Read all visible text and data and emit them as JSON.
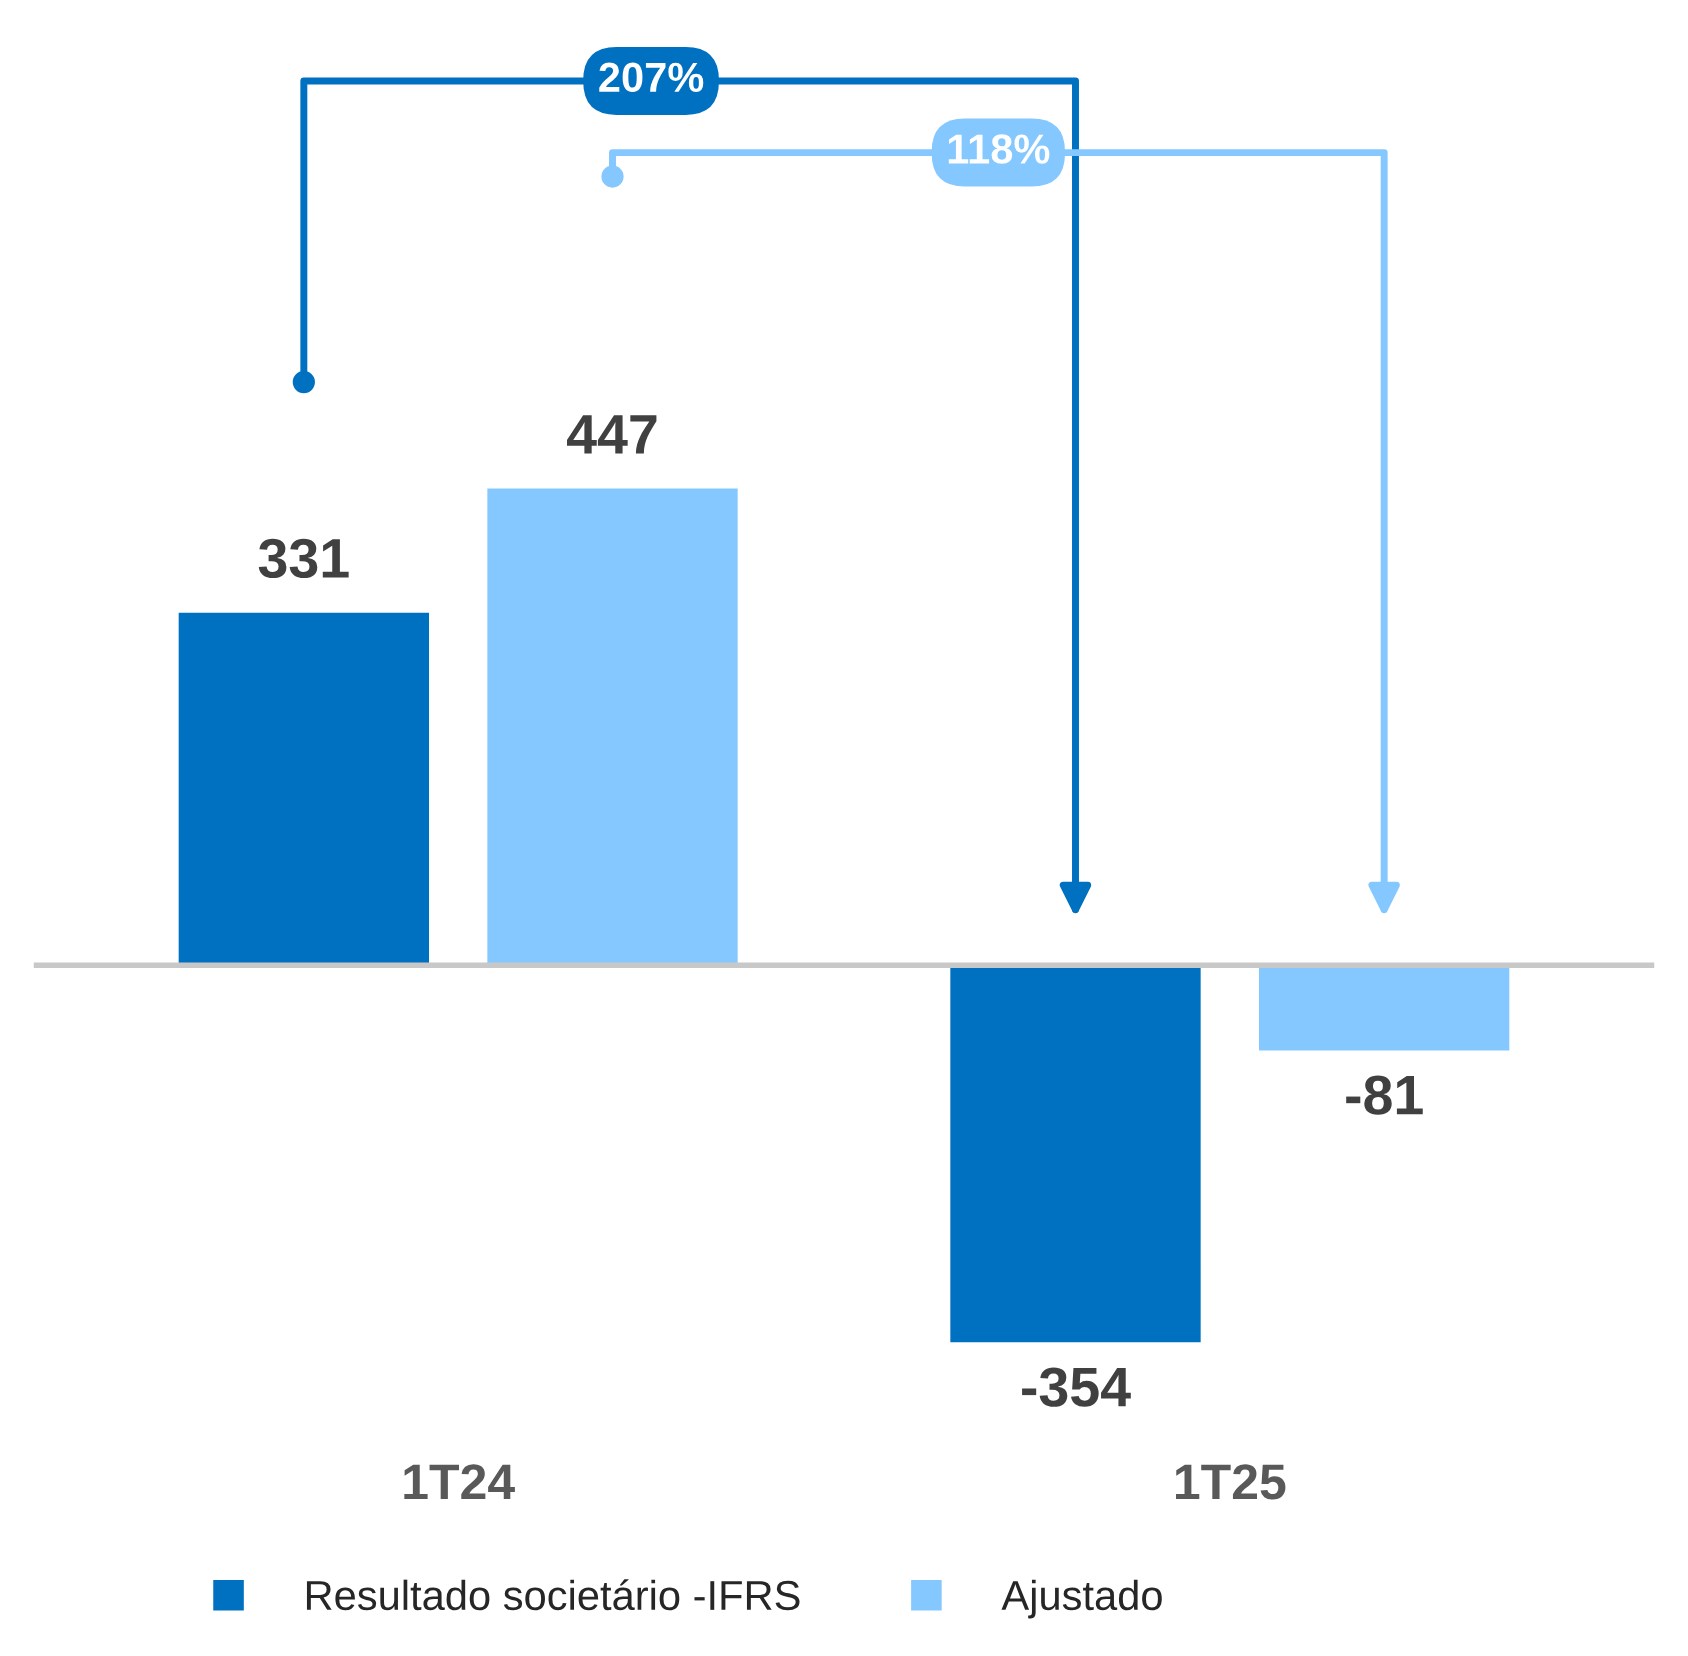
{
  "chart_data": {
    "type": "bar",
    "categories": [
      "1T24",
      "1T25"
    ],
    "series": [
      {
        "name": "Resultado societário -IFRS",
        "color": "#0070c0",
        "values": [
          331,
          -354
        ]
      },
      {
        "name": "Ajustado",
        "color": "#85c8ff",
        "values": [
          447,
          -81
        ]
      }
    ],
    "data_labels": true,
    "legend": "bottom",
    "annotations": [
      "207%",
      "118%"
    ]
  }
}
